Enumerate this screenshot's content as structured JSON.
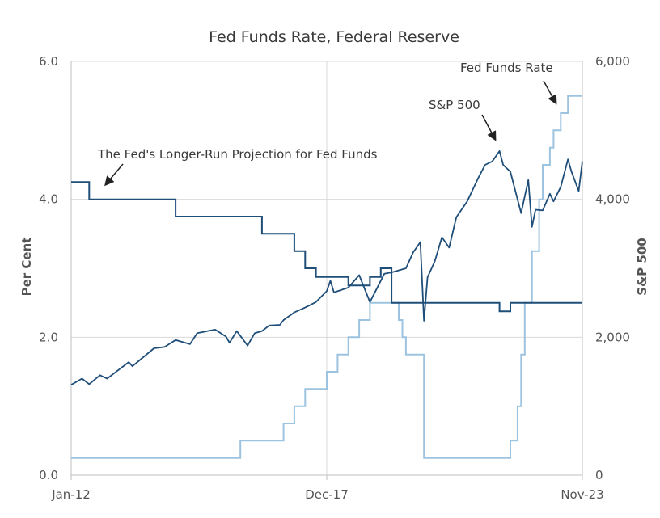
{
  "chart_data": {
    "type": "line",
    "title": "Fed Funds Rate, Federal Reserve",
    "ylabel": "Per Cent",
    "y2label": "S&P  500",
    "ylim": [
      0,
      6
    ],
    "y2lim": [
      0,
      6000
    ],
    "yticks": [
      "0.0",
      "2.0",
      "4.0",
      "6.0"
    ],
    "y2ticks": [
      "0",
      "2,000",
      "4,000",
      "6,000"
    ],
    "xticks": [
      "Jan-12",
      "Dec-17",
      "Nov-23"
    ],
    "grid": "horizontal",
    "colors": {
      "fed_funds": "#9cc3e0",
      "projection": "#1f4e79",
      "sp500": "#1f4e79"
    },
    "annotations": [
      "The Fed's Longer-Run Projection for Fed Funds",
      "S&P 500",
      "Fed Funds Rate"
    ],
    "series": [
      {
        "key": "projection",
        "axis": "left",
        "step": true,
        "x": [
          "2012-01",
          "2012-06",
          "2014-06",
          "2016-06",
          "2017-03",
          "2017-06",
          "2017-09",
          "2018-06",
          "2018-12",
          "2019-03",
          "2019-06",
          "2021-12",
          "2022-03",
          "2022-06",
          "2023-11"
        ],
        "y": [
          4.25,
          4.0,
          3.75,
          3.5,
          3.25,
          3.0,
          2.875,
          2.75,
          2.875,
          3.0,
          2.5,
          2.375,
          2.5,
          2.5,
          2.5
        ]
      },
      {
        "key": "fed_funds",
        "axis": "left",
        "step": true,
        "x": [
          "2012-01",
          "2015-12",
          "2016-12",
          "2017-03",
          "2017-06",
          "2017-12",
          "2018-03",
          "2018-06",
          "2018-09",
          "2018-12",
          "2019-08",
          "2019-09",
          "2019-10",
          "2020-03",
          "2020-04",
          "2022-03",
          "2022-05",
          "2022-06",
          "2022-07",
          "2022-09",
          "2022-11",
          "2022-12",
          "2023-02",
          "2023-03",
          "2023-05",
          "2023-07",
          "2023-11"
        ],
        "y": [
          0.25,
          0.5,
          0.75,
          1.0,
          1.25,
          1.5,
          1.75,
          2.0,
          2.25,
          2.5,
          2.25,
          2.0,
          1.75,
          0.25,
          0.25,
          0.5,
          1.0,
          1.75,
          2.5,
          3.25,
          4.0,
          4.5,
          4.75,
          5.0,
          5.25,
          5.5,
          5.5
        ]
      },
      {
        "key": "sp500",
        "axis": "right",
        "step": false,
        "x": [
          "2012-01",
          "2012-04",
          "2012-06",
          "2012-09",
          "2012-11",
          "2013-01",
          "2013-05",
          "2013-06",
          "2013-12",
          "2014-03",
          "2014-06",
          "2014-10",
          "2014-12",
          "2015-05",
          "2015-08",
          "2015-09",
          "2015-11",
          "2016-02",
          "2016-04",
          "2016-06",
          "2016-08",
          "2016-11",
          "2016-12",
          "2017-03",
          "2017-06",
          "2017-09",
          "2017-12",
          "2018-01",
          "2018-02",
          "2018-06",
          "2018-09",
          "2018-12",
          "2019-04",
          "2019-06",
          "2019-10",
          "2019-12",
          "2020-02",
          "2020-03",
          "2020-04",
          "2020-06",
          "2020-08",
          "2020-10",
          "2020-12",
          "2021-03",
          "2021-06",
          "2021-08",
          "2021-10",
          "2021-12",
          "2022-01",
          "2022-03",
          "2022-06",
          "2022-08",
          "2022-09",
          "2022-10",
          "2022-12",
          "2023-02",
          "2023-03",
          "2023-05",
          "2023-07",
          "2023-08",
          "2023-10",
          "2023-11"
        ],
        "y": [
          1310,
          1400,
          1320,
          1450,
          1400,
          1480,
          1640,
          1580,
          1840,
          1860,
          1960,
          1900,
          2060,
          2110,
          2010,
          1920,
          2090,
          1880,
          2060,
          2090,
          2170,
          2180,
          2250,
          2360,
          2430,
          2510,
          2670,
          2820,
          2650,
          2720,
          2900,
          2510,
          2920,
          2940,
          3000,
          3230,
          3380,
          2240,
          2870,
          3100,
          3450,
          3300,
          3740,
          3970,
          4300,
          4500,
          4550,
          4700,
          4500,
          4400,
          3800,
          4280,
          3600,
          3850,
          3840,
          4080,
          3970,
          4180,
          4580,
          4400,
          4120,
          4550
        ]
      }
    ]
  }
}
